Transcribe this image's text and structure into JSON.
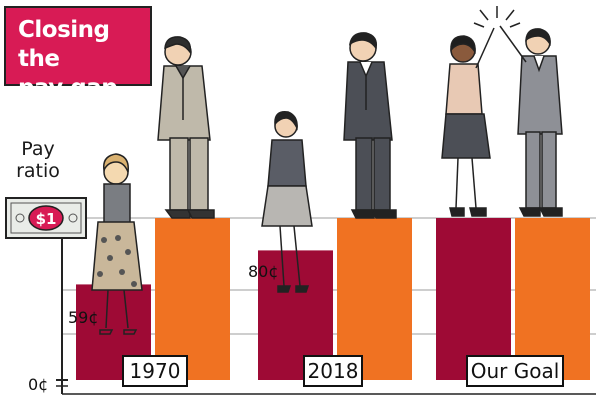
{
  "title": "Closing the pay gap",
  "title_lines": [
    "Closing the",
    "pay gap"
  ],
  "chart_data": {
    "type": "bar",
    "title": "Closing the pay gap",
    "ylabel": "Pay ratio",
    "ylabel_lines": [
      "Pay",
      "ratio"
    ],
    "yunit": "¢",
    "ylim": [
      0,
      100
    ],
    "categories": [
      "1970",
      "2018",
      "Our Goal"
    ],
    "series": [
      {
        "color": "#9e0a35",
        "values": [
          59,
          80,
          100
        ]
      },
      {
        "color": "#f07222",
        "values": [
          100,
          100,
          100
        ]
      }
    ],
    "tick_labels": [
      "0¢"
    ],
    "value_labels": [
      "59¢",
      "80¢"
    ],
    "top_marker": "$1",
    "grid": true
  },
  "colors": {
    "women_bar": "#9e0a35",
    "men_bar": "#f07222",
    "title_bg": "#d81b55",
    "grid": "#bdbdbd"
  },
  "icons": [
    "dollar-bill-icon",
    "woman-1970-figure",
    "man-1970-figure",
    "woman-2018-figure",
    "man-2018-figure",
    "high-five-couple-figure",
    "sparkle-icon"
  ]
}
